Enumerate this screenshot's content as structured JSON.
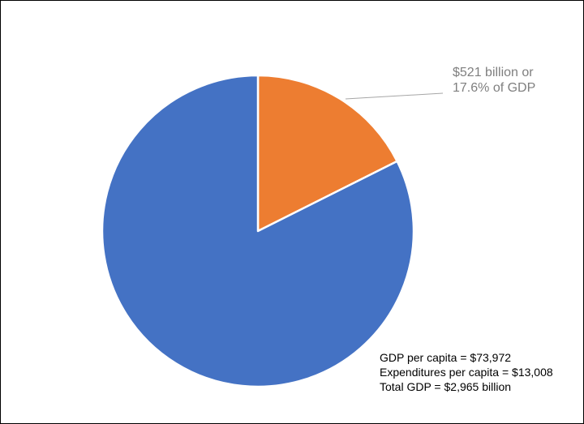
{
  "chart_data": {
    "type": "pie",
    "title": "",
    "slices": [
      {
        "label": "",
        "value": 82.4,
        "color": "#4472C4"
      },
      {
        "label": "$521 billion or 17.6% of GDP",
        "value": 17.6,
        "color": "#ED7D31"
      }
    ],
    "callout": {
      "line1": "$521 billion or",
      "line2": "17.6% of GDP",
      "color": "#7F7F7F"
    },
    "annotation": [
      "GDP per capita = $73,972",
      "Expenditures per capita = $13,008",
      "Total GDP = $2,965 billion"
    ],
    "legend": "none"
  }
}
